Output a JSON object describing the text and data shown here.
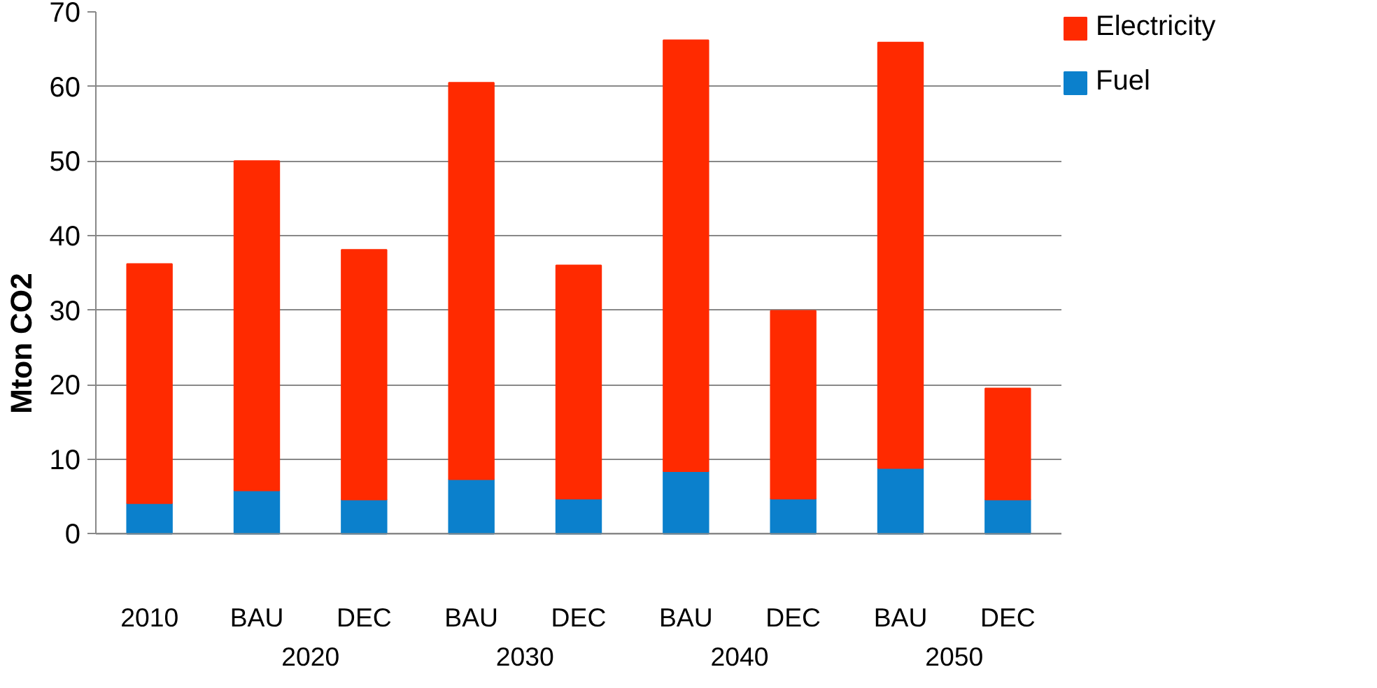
{
  "chart_data": {
    "type": "bar",
    "stacked": true,
    "ylabel": "Mton CO2",
    "categories": [
      "2010",
      "BAU",
      "DEC",
      "BAU",
      "DEC",
      "BAU",
      "DEC",
      "BAU",
      "DEC"
    ],
    "annotations": [
      "2020",
      "2030",
      "2040",
      "2050"
    ],
    "series": [
      {
        "name": "Fuel",
        "color": "#0b80cc",
        "values": [
          4.1,
          5.8,
          4.6,
          7.3,
          4.7,
          8.4,
          4.7,
          8.8,
          4.6
        ]
      },
      {
        "name": "Electricity",
        "color": "#ff2a00",
        "values": [
          32.1,
          44.2,
          33.5,
          53.2,
          31.3,
          57.8,
          25.2,
          57.1,
          14.9
        ]
      }
    ],
    "ylim": [
      0,
      70
    ],
    "yticks": [
      0,
      10,
      20,
      30,
      40,
      50,
      60,
      70
    ],
    "grid": "y",
    "legend": "right"
  }
}
